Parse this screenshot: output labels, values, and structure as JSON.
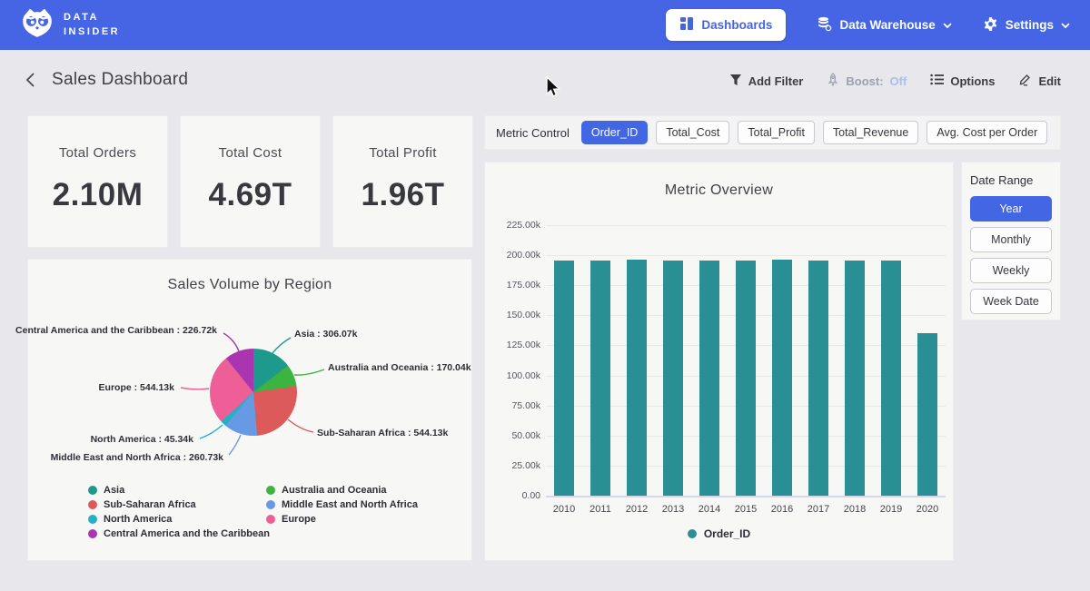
{
  "nav": {
    "brand_line1": "DATA",
    "brand_line2": "INSIDER",
    "dashboards": "Dashboards",
    "data_warehouse": "Data Warehouse",
    "settings": "Settings"
  },
  "header": {
    "title": "Sales Dashboard",
    "add_filter": "Add Filter",
    "boost_label": "Boost:",
    "boost_state": "Off",
    "options": "Options",
    "edit": "Edit"
  },
  "kpis": [
    {
      "label": "Total Orders",
      "value": "2.10M"
    },
    {
      "label": "Total Cost",
      "value": "4.69T"
    },
    {
      "label": "Total Profit",
      "value": "1.96T"
    }
  ],
  "metric_control": {
    "label": "Metric Control",
    "options": [
      {
        "label": "Order_ID",
        "selected": true
      },
      {
        "label": "Total_Cost",
        "selected": false
      },
      {
        "label": "Total_Profit",
        "selected": false
      },
      {
        "label": "Total_Revenue",
        "selected": false
      },
      {
        "label": "Avg. Cost per Order",
        "selected": false
      }
    ]
  },
  "date_range": {
    "label": "Date Range",
    "options": [
      {
        "label": "Year",
        "selected": true
      },
      {
        "label": "Monthly",
        "selected": false
      },
      {
        "label": "Weekly",
        "selected": false
      },
      {
        "label": "Week Date",
        "selected": false
      }
    ]
  },
  "colors": {
    "nav_blue": "#4565e5",
    "accent_blue": "#4366e2",
    "page_bg": "#e7e7ec",
    "panel_bg": "#f7f7f6"
  },
  "chart_data": [
    {
      "type": "pie",
      "title": "Sales Volume by Region",
      "unit": "k",
      "slices": [
        {
          "label": "Asia",
          "value": 306.07,
          "display": "Asia : 306.07k",
          "color": "#1e9a8c"
        },
        {
          "label": "Australia and Oceania",
          "value": 170.04,
          "display": "Australia and Oceania : 170.04k",
          "color": "#3eb440"
        },
        {
          "label": "Sub-Saharan Africa",
          "value": 544.13,
          "display": "Sub-Saharan Africa : 544.13k",
          "color": "#dd5a5a"
        },
        {
          "label": "Middle East and North Africa",
          "value": 260.73,
          "display": "Middle East and North Africa : 260.73k",
          "color": "#669ae4"
        },
        {
          "label": "North America",
          "value": 45.34,
          "display": "North America : 45.34k",
          "color": "#25b0c4"
        },
        {
          "label": "Europe",
          "value": 544.13,
          "display": "Europe : 544.13k",
          "color": "#ee5f98"
        },
        {
          "label": "Central America and the Caribbean",
          "value": 226.72,
          "display": "Central America and the Caribbean : 226.72k",
          "color": "#a935b0"
        }
      ],
      "legend_columns": [
        [
          "Asia",
          "Sub-Saharan Africa",
          "North America",
          "Central America and the Caribbean"
        ],
        [
          "Australia and Oceania",
          "Middle East and North Africa",
          "Europe"
        ]
      ]
    },
    {
      "type": "bar",
      "title": "Metric Overview",
      "categories": [
        "2010",
        "2011",
        "2012",
        "2013",
        "2014",
        "2015",
        "2016",
        "2017",
        "2018",
        "2019",
        "2020"
      ],
      "series": [
        {
          "name": "Order_ID",
          "color": "#2a8f94",
          "values": [
            195300,
            195400,
            196500,
            195300,
            195200,
            195300,
            196300,
            195400,
            195300,
            195600,
            135200
          ]
        }
      ],
      "ylim": [
        0,
        225000
      ],
      "yticks": [
        "225.00k",
        "200.00k",
        "175.00k",
        "150.00k",
        "125.00k",
        "100.00k",
        "75.00k",
        "50.00k",
        "25.00k",
        "0.00"
      ],
      "grid": true,
      "legend_position": "bottom"
    }
  ]
}
